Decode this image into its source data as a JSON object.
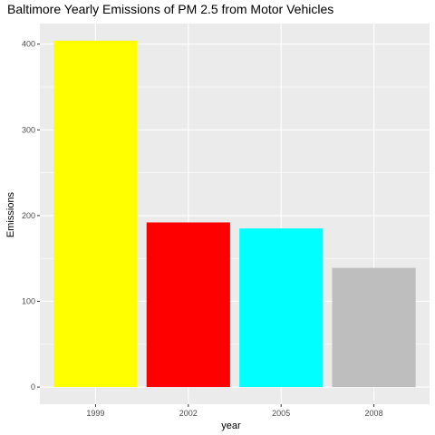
{
  "chart_data": {
    "type": "bar",
    "title": "Baltimore Yearly Emissions of PM 2.5 from Motor Vehicles",
    "xlabel": "year",
    "ylabel": "Emissions",
    "categories": [
      "1999",
      "2002",
      "2005",
      "2008"
    ],
    "values": [
      404,
      192,
      185,
      139
    ],
    "colors": [
      "#ffff00",
      "#ff0000",
      "#00ffff",
      "#bebebe"
    ],
    "ylim": [
      -20,
      424
    ],
    "yticks": [
      0,
      100,
      200,
      300,
      400
    ],
    "grid": true,
    "legend": "none"
  },
  "theme": {
    "panel_background": "#ebebeb",
    "grid_major": "#ffffff",
    "tick_color": "#333333"
  }
}
